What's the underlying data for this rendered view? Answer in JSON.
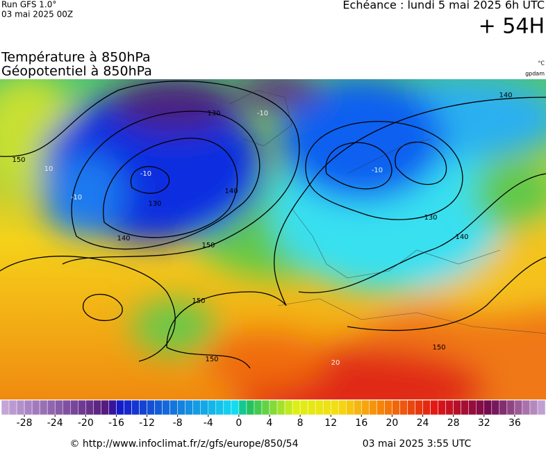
{
  "header": {
    "run": "Run GFS 1.0°",
    "run_date": "03 mai 2025 00Z",
    "valid": "Echéance : lundi 5 mai 2025 6h UTC",
    "lead": "+ 54H"
  },
  "titles": [
    "Température à 850hPa",
    "Géopotentiel à 850hPa"
  ],
  "units": [
    "°C",
    "gpdam"
  ],
  "map": {
    "geopotential_labels": [
      130,
      130,
      140,
      140,
      150,
      150,
      150,
      150,
      150,
      140,
      140,
      130
    ],
    "temperature_labels": [
      -10,
      -10,
      -10,
      -10,
      10,
      20
    ]
  },
  "colorbar": {
    "lim": [
      -31,
      40
    ],
    "ticks": [
      -28,
      -24,
      -20,
      -16,
      -12,
      -8,
      -4,
      0,
      4,
      8,
      12,
      16,
      20,
      24,
      28,
      32,
      36
    ]
  },
  "footer": {
    "url": "© http://www.infoclimat.fr/z/gfs/europe/850/54",
    "timestamp": "03 mai 2025  3:55 UTC"
  }
}
